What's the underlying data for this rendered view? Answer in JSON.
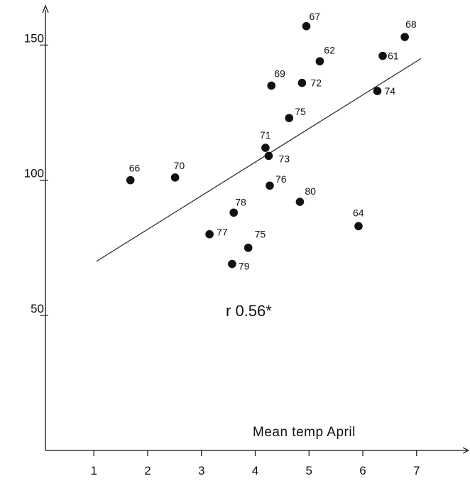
{
  "chart_data": {
    "type": "scatter",
    "xlabel": "Mean temp April",
    "ylabel": "",
    "xlim": [
      0.1,
      7.9
    ],
    "ylim": [
      0,
      163
    ],
    "x_ticks": [
      "1",
      "2",
      "3",
      "4",
      "5",
      "6",
      "7"
    ],
    "y_ticks": [
      "50",
      "100",
      "150"
    ],
    "grid": false,
    "points": [
      {
        "label": "66",
        "x": 1.68,
        "y": 100
      },
      {
        "label": "70",
        "x": 2.51,
        "y": 101
      },
      {
        "label": "77",
        "x": 3.15,
        "y": 80
      },
      {
        "label": "78",
        "x": 3.6,
        "y": 88
      },
      {
        "label": "79",
        "x": 3.57,
        "y": 69
      },
      {
        "label": "75",
        "x": 3.87,
        "y": 75
      },
      {
        "label": "71",
        "x": 4.19,
        "y": 112
      },
      {
        "label": "73",
        "x": 4.25,
        "y": 109
      },
      {
        "label": "76",
        "x": 4.27,
        "y": 98
      },
      {
        "label": "69",
        "x": 4.3,
        "y": 135
      },
      {
        "label": "75",
        "x": 4.63,
        "y": 123
      },
      {
        "label": "72",
        "x": 4.87,
        "y": 136
      },
      {
        "label": "80",
        "x": 4.83,
        "y": 92
      },
      {
        "label": "67",
        "x": 4.95,
        "y": 157
      },
      {
        "label": "62",
        "x": 5.2,
        "y": 144
      },
      {
        "label": "64",
        "x": 5.92,
        "y": 83
      },
      {
        "label": "74",
        "x": 6.27,
        "y": 133
      },
      {
        "label": "61",
        "x": 6.37,
        "y": 146
      },
      {
        "label": "68",
        "x": 6.78,
        "y": 153
      }
    ],
    "regression_line": {
      "x": [
        1.05,
        7.08
      ],
      "y": [
        70,
        145
      ]
    },
    "annotation": "r 0.56*"
  }
}
